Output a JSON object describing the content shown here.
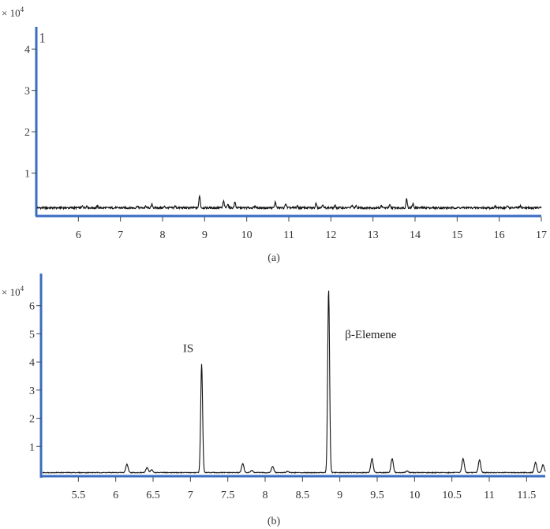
{
  "chart_data": [
    {
      "id": "a",
      "type": "line",
      "panel_label": "(a)",
      "title": "",
      "xlabel": "",
      "ylabel": "",
      "y_multiplier": "× 10",
      "y_multiplier_exp": "4",
      "xlim": [
        5,
        17
      ],
      "ylim": [
        0,
        4.5
      ],
      "x_ticks": [
        6,
        7,
        8,
        9,
        10,
        11,
        12,
        13,
        14,
        15,
        16,
        17
      ],
      "x_tick_labels": [
        "6",
        "7",
        "8",
        "9",
        "10",
        "11",
        "12",
        "13",
        "14",
        "15",
        "16",
        "17"
      ],
      "y_ticks": [
        1,
        2,
        3,
        4
      ],
      "y_tick_labels": [
        "1",
        "2",
        "3",
        "4"
      ],
      "corner_label": "1",
      "grid": false,
      "baseline": 0.16,
      "series": [
        {
          "peaks": [
            {
              "x": 6.1,
              "h": 0.04
            },
            {
              "x": 6.2,
              "h": 0.05
            },
            {
              "x": 6.45,
              "h": 0.04
            },
            {
              "x": 7.4,
              "h": 0.04
            },
            {
              "x": 7.6,
              "h": 0.03
            },
            {
              "x": 7.75,
              "h": 0.08
            },
            {
              "x": 8.05,
              "h": 0.03
            },
            {
              "x": 8.3,
              "h": 0.04
            },
            {
              "x": 8.88,
              "h": 0.3
            },
            {
              "x": 9.45,
              "h": 0.16
            },
            {
              "x": 9.55,
              "h": 0.1
            },
            {
              "x": 9.72,
              "h": 0.14
            },
            {
              "x": 10.2,
              "h": 0.04
            },
            {
              "x": 10.68,
              "h": 0.14
            },
            {
              "x": 10.93,
              "h": 0.1
            },
            {
              "x": 11.2,
              "h": 0.04
            },
            {
              "x": 11.65,
              "h": 0.12
            },
            {
              "x": 11.8,
              "h": 0.08
            },
            {
              "x": 12.1,
              "h": 0.05
            },
            {
              "x": 12.5,
              "h": 0.06
            },
            {
              "x": 12.6,
              "h": 0.04
            },
            {
              "x": 13.2,
              "h": 0.05
            },
            {
              "x": 13.4,
              "h": 0.06
            },
            {
              "x": 13.8,
              "h": 0.22
            },
            {
              "x": 13.95,
              "h": 0.1
            },
            {
              "x": 15.9,
              "h": 0.04
            },
            {
              "x": 16.2,
              "h": 0.04
            },
            {
              "x": 16.5,
              "h": 0.04
            }
          ]
        }
      ]
    },
    {
      "id": "b",
      "type": "line",
      "panel_label": "(b)",
      "title": "",
      "xlabel": "",
      "ylabel": "",
      "y_multiplier": "× 10",
      "y_multiplier_exp": "4",
      "xlim": [
        5.0,
        11.75
      ],
      "ylim": [
        0,
        7.0
      ],
      "x_ticks": [
        5.5,
        6,
        6.5,
        7,
        7.5,
        8,
        8.5,
        9,
        9.5,
        10,
        10.5,
        11,
        11.5
      ],
      "x_tick_labels": [
        "5.5",
        "6",
        "6.5",
        "7",
        "7.5",
        "8",
        "8.5",
        "9",
        "9.5",
        "10",
        "10.5",
        "11",
        "11.5"
      ],
      "y_ticks": [
        1,
        2,
        3,
        4,
        5,
        6
      ],
      "y_tick_labels": [
        "1",
        "2",
        "3",
        "4",
        "5",
        "6"
      ],
      "grid": false,
      "baseline": 0.07,
      "annotations": [
        {
          "text": "IS",
          "x": 6.9,
          "y": 4.35
        },
        {
          "text": "β-Elemene",
          "x": 9.07,
          "y": 4.85
        }
      ],
      "series": [
        {
          "peaks": [
            {
              "x": 6.15,
              "h": 0.3
            },
            {
              "x": 6.42,
              "h": 0.18
            },
            {
              "x": 6.48,
              "h": 0.1
            },
            {
              "x": 7.15,
              "h": 3.85
            },
            {
              "x": 7.7,
              "h": 0.32
            },
            {
              "x": 7.82,
              "h": 0.08
            },
            {
              "x": 8.1,
              "h": 0.22
            },
            {
              "x": 8.3,
              "h": 0.05
            },
            {
              "x": 8.85,
              "h": 6.5
            },
            {
              "x": 9.43,
              "h": 0.5
            },
            {
              "x": 9.7,
              "h": 0.5
            },
            {
              "x": 9.9,
              "h": 0.06
            },
            {
              "x": 10.65,
              "h": 0.5
            },
            {
              "x": 10.87,
              "h": 0.45
            },
            {
              "x": 11.62,
              "h": 0.36
            },
            {
              "x": 11.72,
              "h": 0.28
            }
          ]
        }
      ]
    }
  ]
}
